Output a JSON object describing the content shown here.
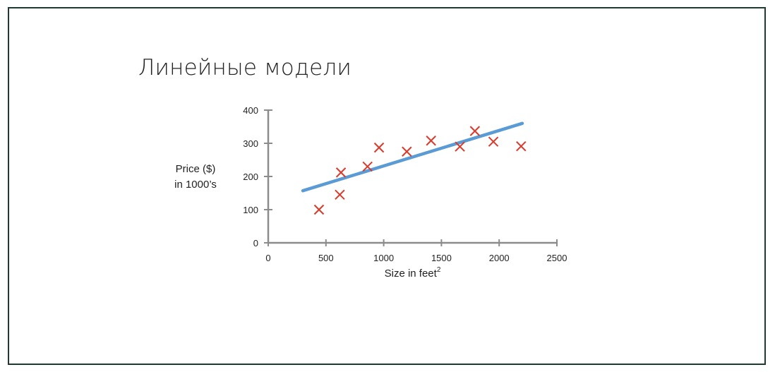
{
  "slide": {
    "title": "Линейные модели"
  },
  "chart_data": {
    "type": "scatter",
    "title": "",
    "xlabel": "Size in feet",
    "xlabel_superscript": "2",
    "ylabel_lines": [
      "Price ($)",
      "in 1000’s"
    ],
    "xlim": [
      0,
      2500
    ],
    "ylim": [
      0,
      400
    ],
    "x_ticks": [
      0,
      500,
      1000,
      1500,
      2000,
      2500
    ],
    "y_ticks": [
      0,
      100,
      200,
      300,
      400
    ],
    "x_tick_labels": [
      "0",
      "500",
      "1000",
      "1500",
      "2000",
      "2500"
    ],
    "y_tick_labels": [
      "0",
      "100",
      "200",
      "300",
      "400"
    ],
    "grid": false,
    "marker": "x",
    "colors": {
      "points": "#d83a2b",
      "line": "#5b9bd5",
      "axis": "#8c8c8c"
    },
    "points": [
      {
        "x": 440,
        "y": 100
      },
      {
        "x": 620,
        "y": 145
      },
      {
        "x": 630,
        "y": 212
      },
      {
        "x": 860,
        "y": 230
      },
      {
        "x": 960,
        "y": 287
      },
      {
        "x": 1200,
        "y": 275
      },
      {
        "x": 1410,
        "y": 308
      },
      {
        "x": 1660,
        "y": 290
      },
      {
        "x": 1790,
        "y": 337
      },
      {
        "x": 1950,
        "y": 305
      },
      {
        "x": 2190,
        "y": 291
      }
    ],
    "fit_line": [
      {
        "x": 300,
        "y": 157
      },
      {
        "x": 2200,
        "y": 360
      }
    ]
  }
}
